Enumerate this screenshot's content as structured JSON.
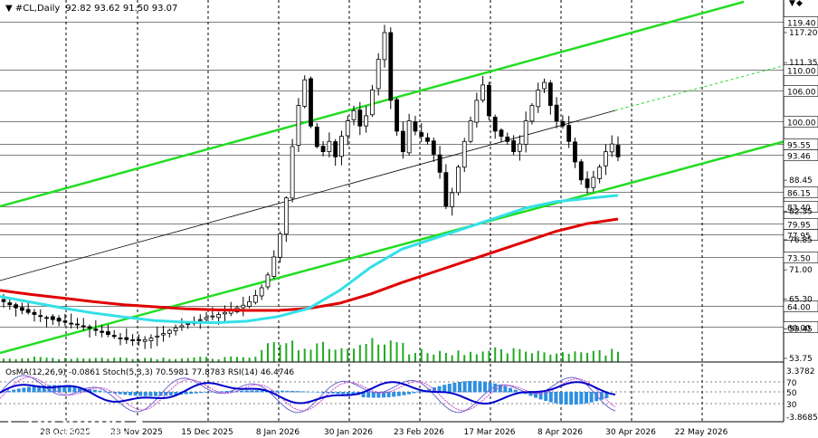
{
  "header": {
    "symbol": "#CL,Daily",
    "ohlc": "92.82 93.62 91.50 93.07"
  },
  "indicator_header": "OsMA(12,26,9) -0.0861   Stoch(5,3,3) 70.5981 77.8783   RSI(14) 46.4746",
  "brand": {
    "name": "instaforex",
    "tagline": "Instant Forex Trading"
  },
  "colors": {
    "candles": "#000000",
    "grid": "#000000",
    "ma_red": "#e00000",
    "ma_cyan": "#33e0e8",
    "channel_green": "#22dd22",
    "trend_black": "#000000",
    "osma_bar": "#2f8fe0",
    "rsi_line": "#0000cc",
    "stoch_main": "#6a6ad0",
    "stoch_signal": "#cc44cc"
  },
  "x_axis_labels": [
    "28 Oct 2025",
    "23 Nov 2025",
    "15 Dec 2025",
    "8 Jan 2026",
    "30 Jan 2026",
    "23 Feb 2026",
    "17 Mar 2026",
    "8 Apr 2026",
    "30 Apr 2026",
    "22 May 2026"
  ],
  "price_levels_marked": [
    "119.40",
    "110.00",
    "106.00",
    "100.00",
    "95.55",
    "93.46",
    "86.15",
    "83.40",
    "79.95",
    "77.95",
    "73.50",
    "64.00",
    "60.00"
  ],
  "price_scale_other": [
    "117.20",
    "111.35",
    "88.45",
    "82.35",
    "76.85",
    "71.00",
    "65.30",
    "59.45",
    "53.75"
  ],
  "indicator_scale": [
    "3.3782",
    "70",
    "50",
    "30",
    "-3.8685"
  ],
  "chart_data": {
    "type": "candlestick",
    "price_range": [
      53.75,
      121.0
    ],
    "period": "Daily",
    "series": [
      {
        "name": "price_path",
        "values": [
          64.8,
          64.2,
          63.6,
          63.1,
          62.7,
          62.3,
          61.9,
          61.6,
          61.3,
          61.0,
          60.8,
          60.6,
          60.3,
          60.0,
          59.6,
          59.2,
          58.8,
          58.4,
          58.0,
          57.7,
          57.4,
          57.2,
          57.2,
          57.4,
          57.7,
          58.1,
          58.6,
          59.2,
          59.7,
          60.1,
          60.5,
          60.9,
          61.3,
          61.7,
          62.0,
          62.3,
          62.7,
          63.1,
          63.6,
          64.1,
          64.8,
          66.0,
          67.5,
          70.0,
          73.5,
          78.0,
          85.0,
          95.0,
          103.0,
          108.0,
          99.0,
          95.0,
          94.0,
          96.0,
          93.0,
          97.0,
          100.0,
          102.0,
          99.0,
          101.0,
          106.0,
          112.0,
          117.2,
          104.0,
          98.0,
          94.0,
          100.0,
          98.0,
          97.0,
          96.0,
          93.5,
          90.0,
          83.4,
          86.0,
          91.0,
          96.0,
          100.0,
          104.0,
          107.0,
          101.0,
          98.0,
          97.0,
          96.0,
          94.0,
          95.5,
          100.0,
          103.0,
          106.0,
          107.5,
          103.0,
          100.0,
          99.0,
          96.0,
          92.0,
          88.5,
          87.0,
          89.0,
          91.0,
          94.0,
          95.5,
          93.0
        ]
      },
      {
        "name": "ma_red",
        "values": [
          67,
          66.2,
          65.5,
          64.8,
          64.2,
          63.8,
          63.4,
          63.2,
          63.1,
          63.1,
          63.5,
          64.5,
          66.3,
          68.5,
          70.5,
          72.5,
          74.5,
          76.5,
          78.5,
          80.0,
          80.9
        ]
      },
      {
        "name": "ma_cyan",
        "values": [
          65.8,
          64.7,
          63.6,
          62.6,
          61.8,
          61.1,
          60.8,
          60.7,
          61.0,
          61.9,
          63.5,
          67.0,
          71.5,
          75.0,
          77.0,
          79.0,
          81.0,
          83.0,
          84.3,
          84.9,
          85.5
        ]
      }
    ]
  }
}
